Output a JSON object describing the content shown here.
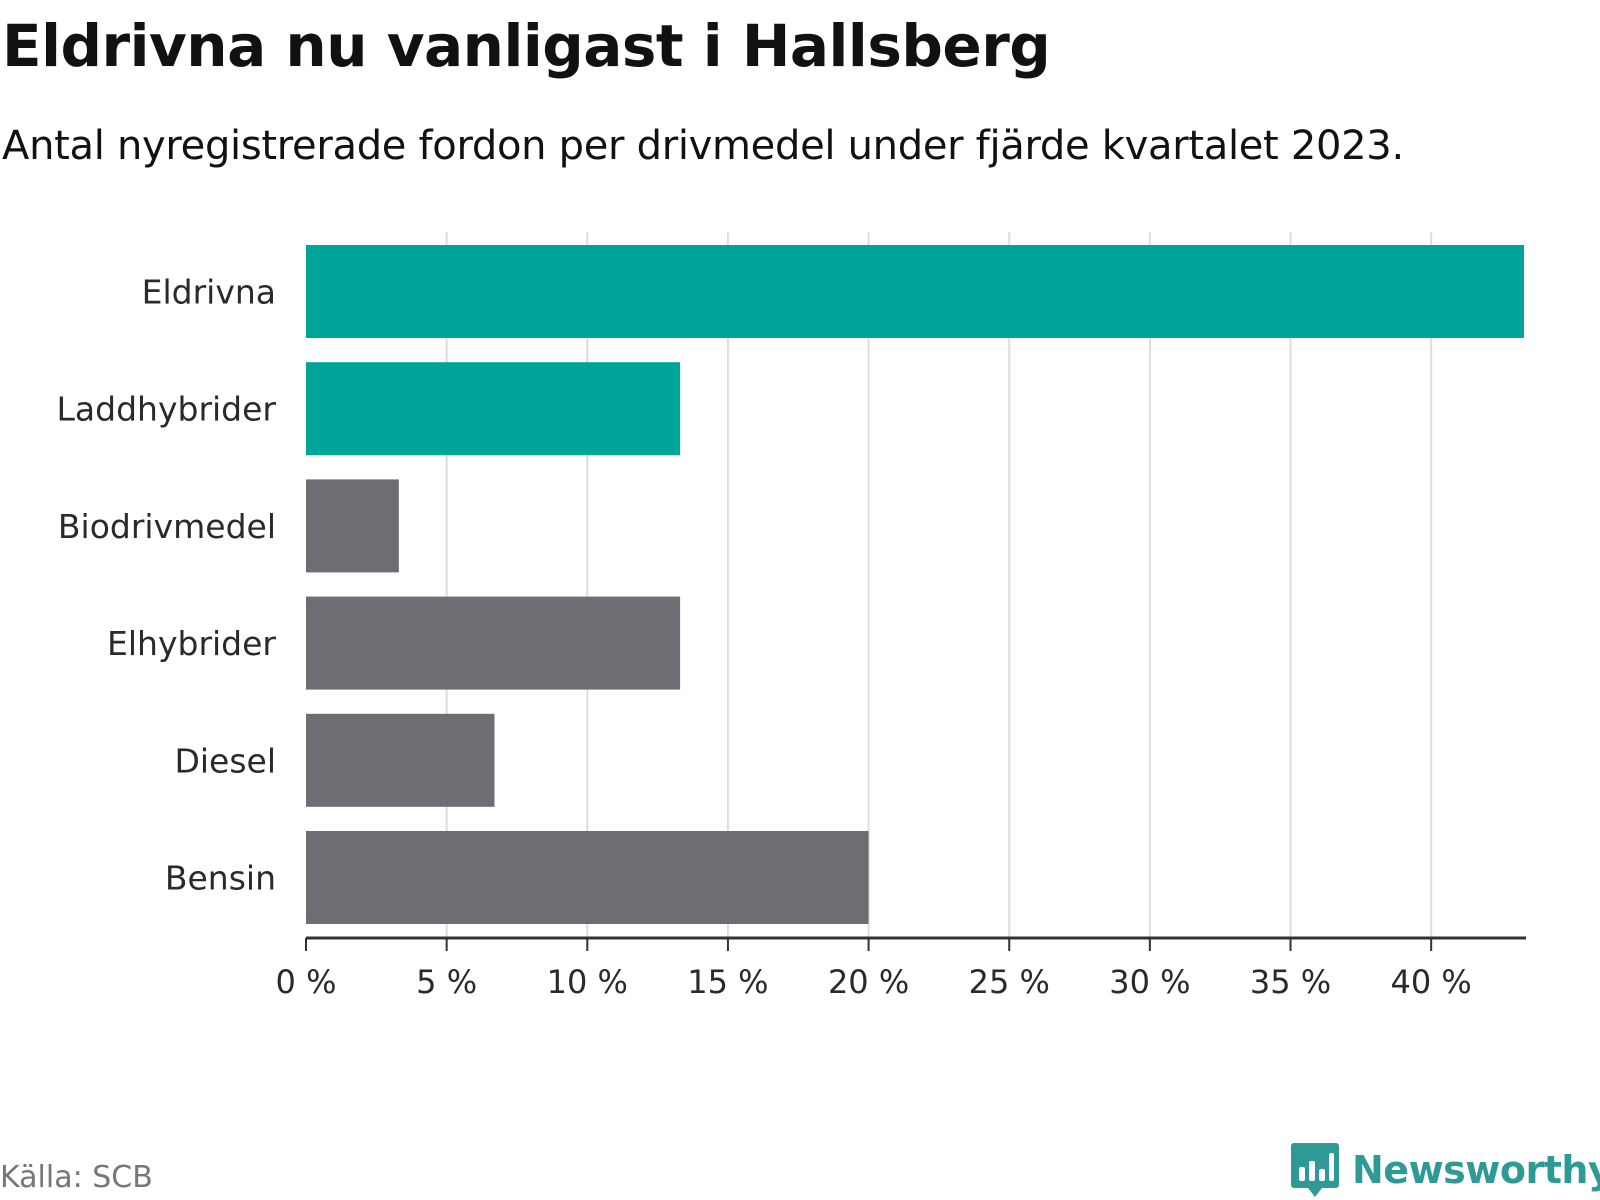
{
  "header": {
    "title": "Eldrivna nu vanligast i Hallsberg",
    "subtitle": "Antal nyregistrerade fordon per drivmedel under fjärde kvartalet 2023."
  },
  "footer": {
    "source": "Källa: SCB",
    "brand": "Newsworthy"
  },
  "colors": {
    "highlight": "#00a499",
    "default": "#6e6d74",
    "grid": "#dddddd",
    "axis": "#333333",
    "brand": "#2f9a95"
  },
  "chart_data": {
    "type": "bar",
    "orientation": "horizontal",
    "title": "Eldrivna nu vanligast i Hallsberg",
    "subtitle": "Antal nyregistrerade fordon per drivmedel under fjärde kvartalet 2023.",
    "categories": [
      "Eldrivna",
      "Laddhybrider",
      "Biodrivmedel",
      "Elhybrider",
      "Diesel",
      "Bensin"
    ],
    "values": [
      43.3,
      13.3,
      3.3,
      13.3,
      6.7,
      20.0
    ],
    "highlighted": [
      true,
      true,
      false,
      false,
      false,
      false
    ],
    "unit": "%",
    "xlim": [
      0,
      43.3
    ],
    "ticks": [
      0,
      5,
      10,
      15,
      20,
      25,
      30,
      35,
      40
    ],
    "tick_labels": [
      "0 %",
      "5 %",
      "10 %",
      "15 %",
      "20 %",
      "25 %",
      "30 %",
      "35 %",
      "40 %"
    ],
    "grid": true
  }
}
